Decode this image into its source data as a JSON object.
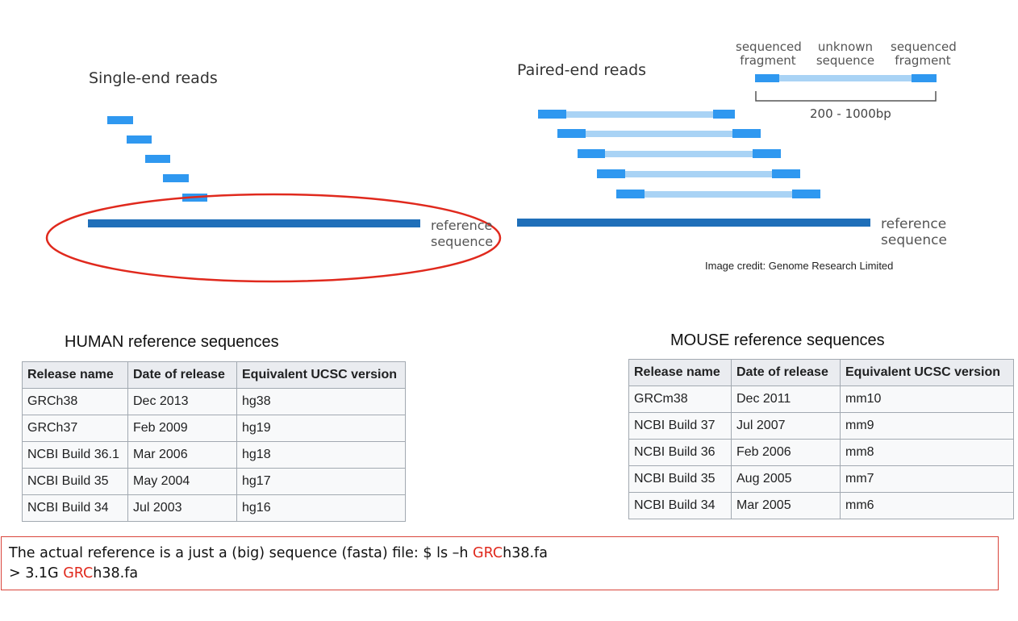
{
  "single_end": {
    "title": "Single-end reads",
    "reference_label_line1": "reference",
    "reference_label_line2": "sequence"
  },
  "paired_end": {
    "title": "Paired-end reads",
    "legend": {
      "left_line1": "sequenced",
      "left_line2": "fragment",
      "middle_line1": "unknown",
      "middle_line2": "sequence",
      "right_line1": "sequenced",
      "right_line2": "fragment"
    },
    "size_range": "200 - 1000bp",
    "reference_label_line1": "reference",
    "reference_label_line2": "sequence"
  },
  "image_credit": "Image credit: Genome Research Limited",
  "colors": {
    "read": "#2f98f0",
    "insert": "#a9d3f5",
    "reference": "#1f6fb9",
    "highlight_ellipse": "#e0291d"
  },
  "human_table": {
    "title": "HUMAN reference sequences",
    "headers": [
      "Release name",
      "Date of release",
      "Equivalent UCSC version"
    ],
    "rows": [
      [
        "GRCh38",
        "Dec 2013",
        "hg38"
      ],
      [
        "GRCh37",
        "Feb 2009",
        "hg19"
      ],
      [
        "NCBI Build 36.1",
        "Mar 2006",
        "hg18"
      ],
      [
        "NCBI Build 35",
        "May 2004",
        "hg17"
      ],
      [
        "NCBI Build 34",
        "Jul 2003",
        "hg16"
      ]
    ]
  },
  "mouse_table": {
    "title": "MOUSE reference sequences",
    "headers": [
      "Release name",
      "Date of release",
      "Equivalent UCSC version"
    ],
    "rows": [
      [
        "GRCm38",
        "Dec 2011",
        "mm10"
      ],
      [
        "NCBI Build 37",
        "Jul 2007",
        "mm9"
      ],
      [
        "NCBI Build 36",
        "Feb 2006",
        "mm8"
      ],
      [
        "NCBI Build 35",
        "Aug 2005",
        "mm7"
      ],
      [
        "NCBI Build 34",
        "Mar 2005",
        "mm6"
      ]
    ]
  },
  "note": {
    "line1_prefix": "The actual reference is a just a (big) sequence (fasta) file: $ ls –h ",
    "line1_highlight": "GRC",
    "line1_suffix": "h38.fa",
    "line2_prefix": "> 3.1G ",
    "line2_highlight": "GRC",
    "line2_suffix": "h38.fa"
  }
}
